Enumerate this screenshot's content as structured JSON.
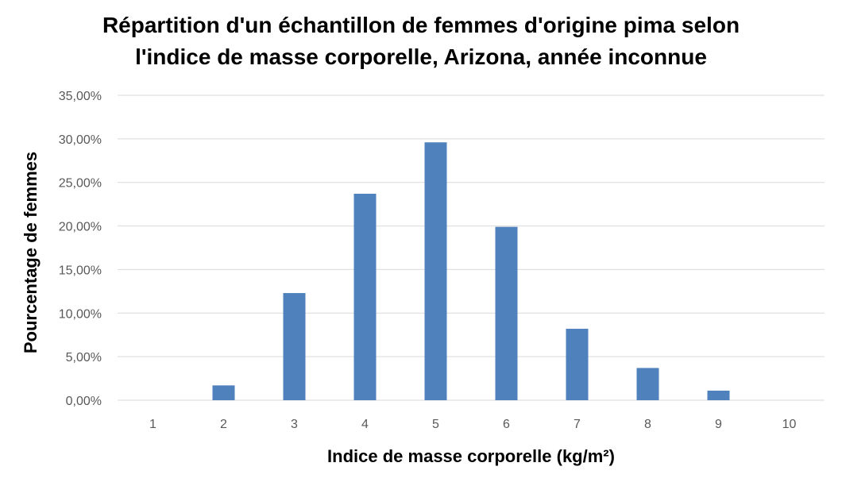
{
  "chart_data": {
    "type": "bar",
    "title_line1": "Répartition d'un échantillon de femmes d'origine pima selon",
    "title_line2": "l'indice de masse corporelle, Arizona, année inconnue",
    "xlabel": "Indice de masse corporelle (kg/m²)",
    "ylabel": "Pourcentage de femmes",
    "categories": [
      "1",
      "2",
      "3",
      "4",
      "5",
      "6",
      "7",
      "8",
      "9",
      "10"
    ],
    "values": [
      0.0,
      1.7,
      12.3,
      23.7,
      29.6,
      19.9,
      8.2,
      3.7,
      1.1,
      0.0
    ],
    "ylim": [
      0,
      35
    ],
    "yticks": [
      0,
      5,
      10,
      15,
      20,
      25,
      30,
      35
    ],
    "ytick_labels": [
      "0,00%",
      "5,00%",
      "10,00%",
      "15,00%",
      "20,00%",
      "25,00%",
      "30,00%",
      "35,00%"
    ],
    "grid": true,
    "legend": "none",
    "bar_color": "#4f81bd",
    "grid_color": "#d9d9d9"
  }
}
